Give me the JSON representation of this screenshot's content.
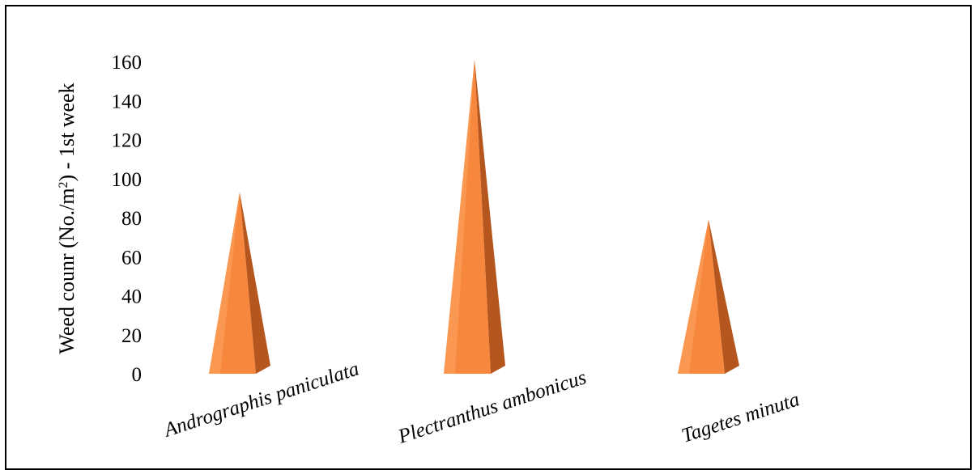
{
  "chart_data": {
    "type": "bar",
    "bar_shape": "pyramid",
    "categories": [
      "Andrographis paniculata",
      "Plectranthus ambonicus",
      "Tagetes minuta"
    ],
    "values": [
      93,
      161,
      79
    ],
    "ylabel": "Weed counr (No./m",
    "ylabel_sup": "2",
    "ylabel_tail": ") - 1st week",
    "yticks": [
      0,
      20,
      40,
      60,
      80,
      100,
      120,
      140,
      160
    ],
    "ylim": [
      0,
      160
    ],
    "grid": false,
    "colors": {
      "front": "#F7873D",
      "side": "#B5561E",
      "highlight": "#FBA25E"
    }
  }
}
